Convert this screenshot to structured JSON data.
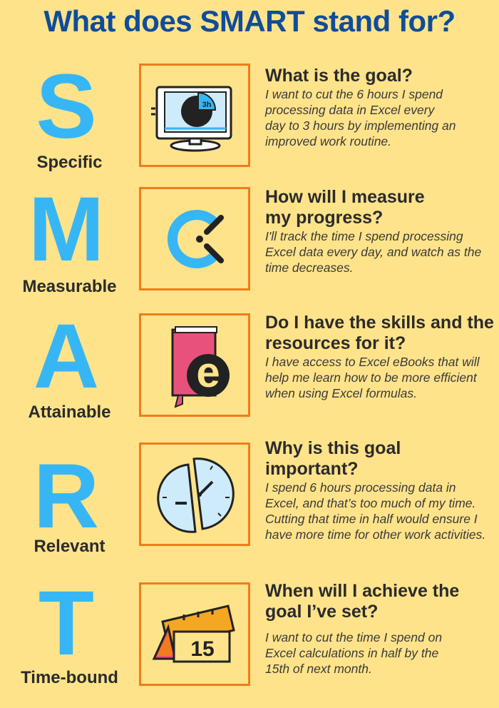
{
  "title": "What does SMART stand for?",
  "items": [
    {
      "letter": "S",
      "word": "Specific",
      "icon": "monitor-pie-chart-icon",
      "icon_text": "3h",
      "question": "What is the goal?",
      "answer": "I want to cut the 6 hours I spend processing data in Excel every day to 3 hours by implementing an improved work routine."
    },
    {
      "letter": "M",
      "word": "Measurable",
      "icon": "timer-gauge-icon",
      "question": "How will I measure my progress?",
      "answer": "I'll track the time I spend processing Excel data every day, and watch as the time decreases."
    },
    {
      "letter": "A",
      "word": "Attainable",
      "icon": "ebook-icon",
      "icon_text": "e",
      "question": "Do I have the skills and the resources for it?",
      "answer": "I have access to Excel eBooks that will help me learn how to be more efficient when using Excel formulas."
    },
    {
      "letter": "R",
      "word": "Relevant",
      "icon": "split-clock-icon",
      "question": "Why is this goal important?",
      "answer": "I spend 6 hours processing data in Excel, and that’s too much of my time. Cutting that time in half would ensure I have more time for other work activities."
    },
    {
      "letter": "T",
      "word": "Time-bound",
      "icon": "calendar-icon",
      "icon_text": "15",
      "question": "When will I achieve the goal I’ve set?",
      "answer": "I want to cut the time I spend on Excel calculations in half by the 15th of next month."
    }
  ],
  "colors": {
    "background": "#FFE38A",
    "title": "#0F4C9A",
    "letter": "#37B6F5",
    "box_border": "#F07C1B"
  }
}
